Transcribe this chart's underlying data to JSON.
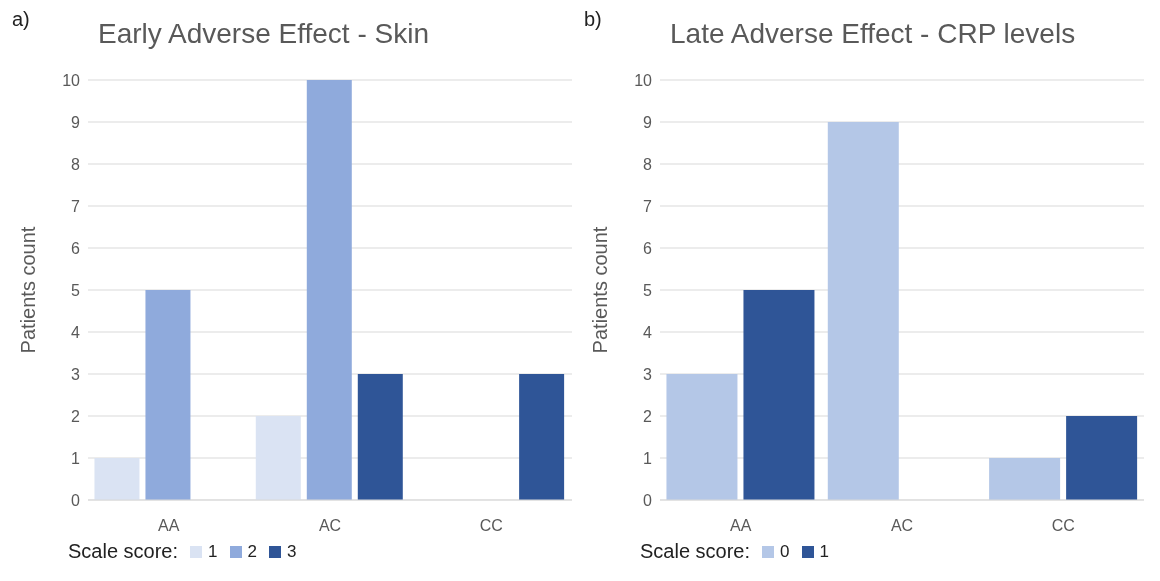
{
  "chart_data": [
    {
      "type": "bar",
      "title": "Early Adverse Effect - Skin",
      "annotations": [
        "a)"
      ],
      "ylabel": "Patients count",
      "legend_title": "Scale score:",
      "categories": [
        "AA",
        "AC",
        "CC"
      ],
      "ylim": [
        0,
        10
      ],
      "yticks": [
        0,
        1,
        2,
        3,
        4,
        5,
        6,
        7,
        8,
        9,
        10
      ],
      "grid": "y",
      "legend": "bottom",
      "series": [
        {
          "name": "1",
          "color": "#dae3f3",
          "values": [
            1,
            2,
            0
          ]
        },
        {
          "name": "2",
          "color": "#8faadc",
          "values": [
            5,
            10,
            0
          ]
        },
        {
          "name": "3",
          "color": "#2f5597",
          "values": [
            0,
            3,
            3
          ]
        }
      ]
    },
    {
      "type": "bar",
      "title": "Late Adverse Effect - CRP levels",
      "annotations": [
        "b)"
      ],
      "ylabel": "Patients count",
      "legend_title": "Scale score:",
      "categories": [
        "AA",
        "AC",
        "CC"
      ],
      "ylim": [
        0,
        10
      ],
      "yticks": [
        0,
        1,
        2,
        3,
        4,
        5,
        6,
        7,
        8,
        9,
        10
      ],
      "grid": "y",
      "legend": "bottom",
      "series": [
        {
          "name": "0",
          "color": "#b4c7e7",
          "values": [
            3,
            9,
            1
          ]
        },
        {
          "name": "1",
          "color": "#2f5597",
          "values": [
            5,
            0,
            2
          ]
        }
      ]
    }
  ]
}
